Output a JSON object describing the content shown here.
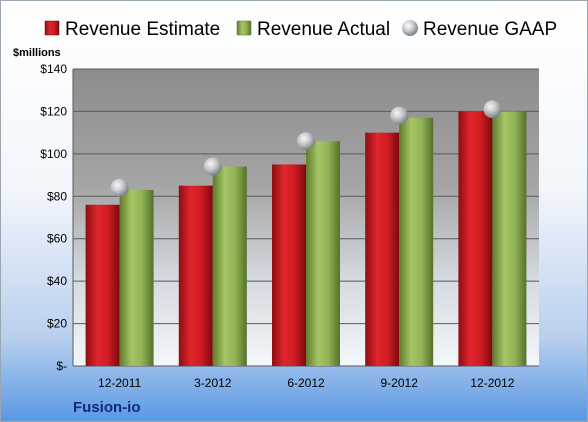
{
  "company": "Fusion-io",
  "chart_data": {
    "type": "bar",
    "ylabel": "$millions",
    "ylim": [
      0,
      140
    ],
    "yticks": [
      {
        "value": 0,
        "label": "$-"
      },
      {
        "value": 20,
        "label": "$20"
      },
      {
        "value": 40,
        "label": "$40"
      },
      {
        "value": 60,
        "label": "$60"
      },
      {
        "value": 80,
        "label": "$80"
      },
      {
        "value": 100,
        "label": "$100"
      },
      {
        "value": 120,
        "label": "$120"
      },
      {
        "value": 140,
        "label": "$140"
      }
    ],
    "categories": [
      "12-2011",
      "3-2012",
      "6-2012",
      "9-2012",
      "12-2012"
    ],
    "series": [
      {
        "name": "Revenue Estimate",
        "kind": "bar",
        "color": "#c0161c",
        "values": [
          76,
          85,
          95,
          110,
          120
        ]
      },
      {
        "name": "Revenue Actual",
        "kind": "bar",
        "color": "#8db050",
        "values": [
          83,
          94,
          106,
          117,
          120
        ]
      },
      {
        "name": "Revenue GAAP",
        "kind": "marker",
        "color": "#b8bcc2",
        "values": [
          84,
          94,
          106,
          118,
          121
        ]
      }
    ],
    "grid": true,
    "legend": "top"
  }
}
